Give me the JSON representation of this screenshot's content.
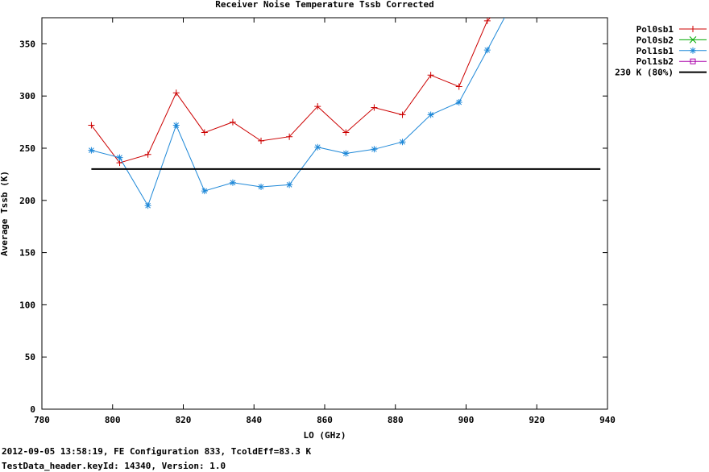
{
  "chart_data": {
    "type": "line",
    "title": "Receiver Noise Temperature Tssb Corrected",
    "xlabel": "LO (GHz)",
    "ylabel": "Average Tssb (K)",
    "xlim": [
      780,
      940
    ],
    "ylim": [
      0,
      375
    ],
    "xticks": [
      780,
      800,
      820,
      840,
      860,
      880,
      900,
      920,
      940
    ],
    "yticks": [
      0,
      50,
      100,
      150,
      200,
      250,
      300,
      350
    ],
    "grid": false,
    "legend_position": "top-right, outside plot",
    "series": [
      {
        "name": "Pol0sb1",
        "color": "#cc0000",
        "marker": "plus",
        "x": [
          794,
          802,
          810,
          818,
          826,
          834,
          842,
          850,
          858,
          866,
          874,
          882,
          890,
          898,
          906,
          914
        ],
        "y": [
          272,
          236,
          244,
          303,
          265,
          275,
          257,
          261,
          290,
          265,
          289,
          282,
          320,
          309,
          372,
          400
        ]
      },
      {
        "name": "Pol0sb2",
        "color": "#00aa00",
        "marker": "cross",
        "x": [],
        "y": []
      },
      {
        "name": "Pol1sb1",
        "color": "#1e88d8",
        "marker": "star",
        "x": [
          794,
          802,
          810,
          818,
          826,
          834,
          842,
          850,
          858,
          866,
          874,
          882,
          890,
          898,
          906,
          914
        ],
        "y": [
          248,
          241,
          195,
          272,
          209,
          217,
          213,
          215,
          251,
          245,
          249,
          256,
          282,
          294,
          344,
          395
        ]
      },
      {
        "name": "Pol1sb2",
        "color": "#aa00aa",
        "marker": "square",
        "x": [],
        "y": []
      },
      {
        "name": "230 K (80%)",
        "color": "#000000",
        "marker": "none",
        "x": [
          794,
          938
        ],
        "y": [
          230,
          230
        ]
      }
    ]
  },
  "footer": {
    "line1": "2012-09-05 13:58:19, FE Configuration 833, TcoldEff=83.3 K",
    "line2": "TestData_header.keyId: 14340, Version: 1.0"
  }
}
